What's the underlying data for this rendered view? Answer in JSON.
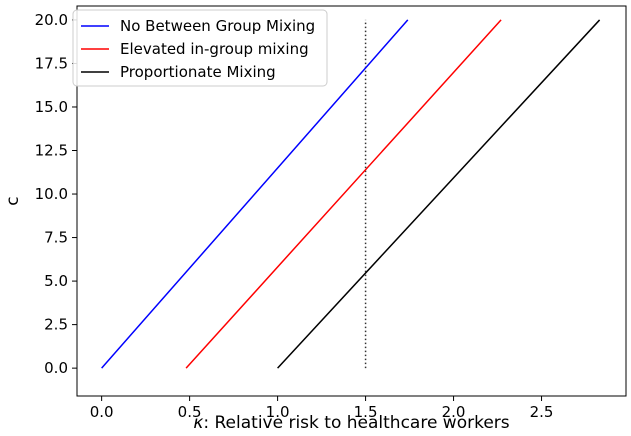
{
  "chart_data": {
    "type": "line",
    "title": "",
    "xlabel": "κ: Relative risk to healthcare workers",
    "xlabel_symbol": "κ",
    "xlabel_rest": ": Relative risk to healthcare workers",
    "ylabel": "c",
    "xlim": [
      -0.14,
      2.98
    ],
    "ylim": [
      -1.6,
      20.8
    ],
    "x_ticks": [
      0.0,
      0.5,
      1.0,
      1.5,
      2.0,
      2.5
    ],
    "x_tick_labels": [
      "0.0",
      "0.5",
      "1.0",
      "1.5",
      "2.0",
      "2.5"
    ],
    "y_ticks": [
      0.0,
      2.5,
      5.0,
      7.5,
      10.0,
      12.5,
      15.0,
      17.5,
      20.0
    ],
    "y_tick_labels": [
      "0.0",
      "2.5",
      "5.0",
      "7.5",
      "10.0",
      "12.5",
      "15.0",
      "17.5",
      "20.0"
    ],
    "grid": false,
    "legend_position": "upper-left",
    "series": [
      {
        "name": "No Between Group Mixing",
        "color": "#0000ff",
        "x": [
          0.0,
          1.74
        ],
        "y": [
          0.0,
          20.0
        ]
      },
      {
        "name": "Elevated in-group mixing",
        "color": "#ff0000",
        "x": [
          0.48,
          2.27
        ],
        "y": [
          0.0,
          20.0
        ]
      },
      {
        "name": "Proportionate Mixing",
        "color": "#000000",
        "x": [
          1.0,
          2.83
        ],
        "y": [
          0.0,
          20.0
        ]
      }
    ],
    "reference_lines": [
      {
        "orientation": "vertical",
        "x": 1.5,
        "y_range": [
          0.0,
          20.0
        ],
        "style": "dotted",
        "color": "#333333"
      }
    ]
  }
}
